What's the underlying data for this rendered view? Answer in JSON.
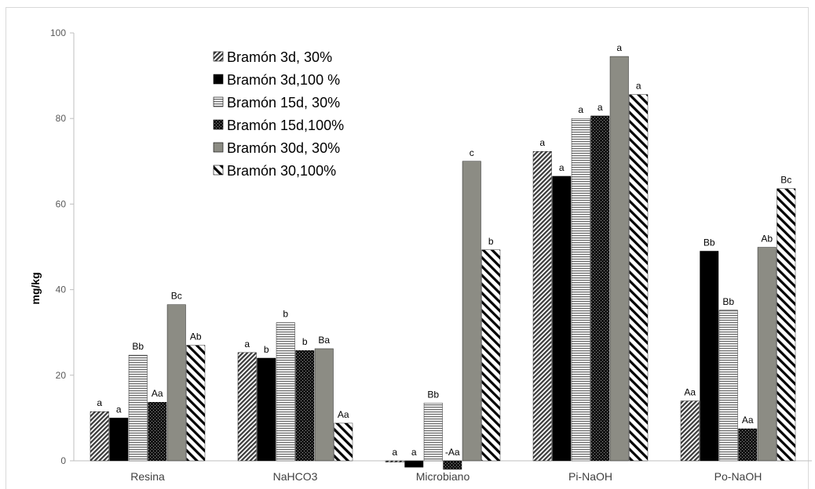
{
  "chart_data": {
    "type": "bar",
    "title": "",
    "xlabel": "",
    "ylabel": "mg/kg",
    "ylim": [
      0,
      100
    ],
    "yticks": [
      0,
      20,
      40,
      60,
      80,
      100
    ],
    "grid": false,
    "legend_position": "top-left",
    "categories": [
      "Resina",
      "NaHCO3",
      "Microbiano",
      "Pi-NaOH",
      "Po-NaOH"
    ],
    "series": [
      {
        "name": "Bramón  3d, 30%",
        "pattern": "diag-dense",
        "values": [
          11.5,
          25.3,
          -0.3,
          72.3,
          14.0
        ],
        "labels": [
          "a",
          "a",
          "a",
          "a",
          "Aa"
        ]
      },
      {
        "name": "Bramón 3d,100 %",
        "pattern": "solid-black",
        "values": [
          10.0,
          24.0,
          -1.5,
          66.5,
          49.0
        ],
        "labels": [
          "a",
          "b",
          "a",
          "a",
          "Bb"
        ]
      },
      {
        "name": "Bramón 15d, 30%",
        "pattern": "horizontal",
        "values": [
          24.7,
          32.3,
          13.5,
          80.0,
          35.2
        ],
        "labels": [
          "Bb",
          "b",
          "Bb",
          "a",
          "Bb"
        ]
      },
      {
        "name": "Bramón 15d,100%",
        "pattern": "dots-dark",
        "values": [
          13.7,
          25.8,
          -2.0,
          80.6,
          7.5
        ],
        "labels": [
          "Aa",
          "b",
          "-Aa",
          "a",
          "Aa"
        ]
      },
      {
        "name": "Bramón 30d, 30%",
        "pattern": "solid-gray",
        "values": [
          36.5,
          26.2,
          70.0,
          94.5,
          49.9
        ],
        "labels": [
          "Bc",
          "Ba",
          "c",
          "a",
          "Ab"
        ]
      },
      {
        "name": "Bramón 30,100%",
        "pattern": "diag-wide",
        "values": [
          27.0,
          8.8,
          49.3,
          85.6,
          63.6
        ],
        "labels": [
          "Ab",
          "Aa",
          "b",
          "a",
          "Bc"
        ]
      }
    ]
  }
}
